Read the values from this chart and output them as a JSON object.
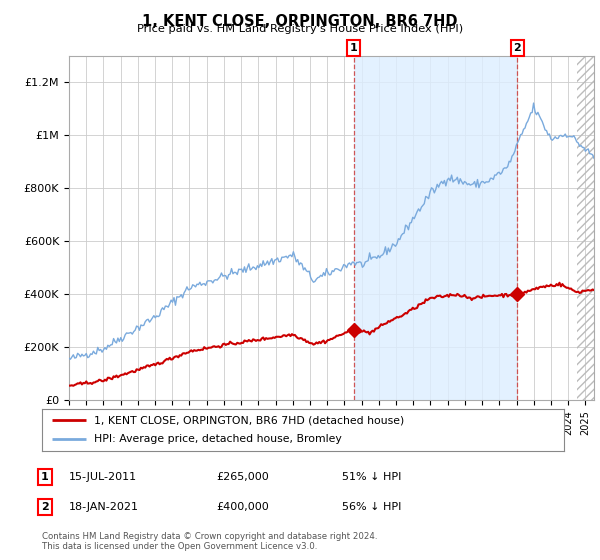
{
  "title": "1, KENT CLOSE, ORPINGTON, BR6 7HD",
  "subtitle": "Price paid vs. HM Land Registry's House Price Index (HPI)",
  "ylim": [
    0,
    1300000
  ],
  "yticks": [
    0,
    200000,
    400000,
    600000,
    800000,
    1000000,
    1200000
  ],
  "ytick_labels": [
    "£0",
    "£200K",
    "£400K",
    "£600K",
    "£800K",
    "£1M",
    "£1.2M"
  ],
  "plot_bg_color": "#ffffff",
  "grid_color": "#cccccc",
  "hpi_color": "#7aaadd",
  "hpi_fill_color": "#ddeeff",
  "price_color": "#cc0000",
  "sale1_date_num": 2011.54,
  "sale1_price": 265000,
  "sale2_date_num": 2021.05,
  "sale2_price": 400000,
  "legend_label_price": "1, KENT CLOSE, ORPINGTON, BR6 7HD (detached house)",
  "legend_label_hpi": "HPI: Average price, detached house, Bromley",
  "footer": "Contains HM Land Registry data © Crown copyright and database right 2024.\nThis data is licensed under the Open Government Licence v3.0.",
  "xstart": 1995.0,
  "xend": 2025.5
}
